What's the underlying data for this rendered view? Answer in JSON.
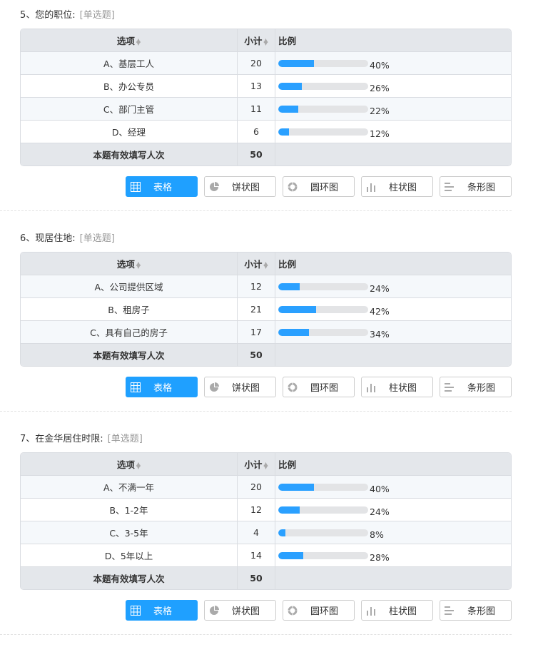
{
  "headers": {
    "option": "选项",
    "count": "小计",
    "ratio": "比例",
    "total_label": "本题有效填写人次"
  },
  "buttons": [
    {
      "label": "表格",
      "icon": "table-icon",
      "active": true
    },
    {
      "label": "饼状图",
      "icon": "pie-chart-icon",
      "active": false
    },
    {
      "label": "圆环图",
      "icon": "donut-chart-icon",
      "active": false
    },
    {
      "label": "柱状图",
      "icon": "bar-chart-icon",
      "active": false
    },
    {
      "label": "条形图",
      "icon": "horizontal-bar-chart-icon",
      "active": false
    }
  ],
  "colors": {
    "accent": "#1fa0ff",
    "bar_bg": "#e3e4e6"
  },
  "questions": [
    {
      "title": "5、您的职位:",
      "type": "[单选题]",
      "total": "50",
      "rows": [
        {
          "option": "A、基层工人",
          "count": "20",
          "pct": 40,
          "pct_label": "40%"
        },
        {
          "option": "B、办公专员",
          "count": "13",
          "pct": 26,
          "pct_label": "26%"
        },
        {
          "option": "C、部门主管",
          "count": "11",
          "pct": 22,
          "pct_label": "22%"
        },
        {
          "option": "D、经理",
          "count": "6",
          "pct": 12,
          "pct_label": "12%"
        }
      ]
    },
    {
      "title": "6、现居住地:",
      "type": "[单选题]",
      "total": "50",
      "rows": [
        {
          "option": "A、公司提供区域",
          "count": "12",
          "pct": 24,
          "pct_label": "24%"
        },
        {
          "option": "B、租房子",
          "count": "21",
          "pct": 42,
          "pct_label": "42%"
        },
        {
          "option": "C、具有自己的房子",
          "count": "17",
          "pct": 34,
          "pct_label": "34%"
        }
      ]
    },
    {
      "title": "7、在金华居住时限:",
      "type": "[单选题]",
      "total": "50",
      "rows": [
        {
          "option": "A、不满一年",
          "count": "20",
          "pct": 40,
          "pct_label": "40%"
        },
        {
          "option": "B、1-2年",
          "count": "12",
          "pct": 24,
          "pct_label": "24%"
        },
        {
          "option": "C、3-5年",
          "count": "4",
          "pct": 8,
          "pct_label": "8%"
        },
        {
          "option": "D、5年以上",
          "count": "14",
          "pct": 28,
          "pct_label": "28%"
        }
      ]
    }
  ]
}
